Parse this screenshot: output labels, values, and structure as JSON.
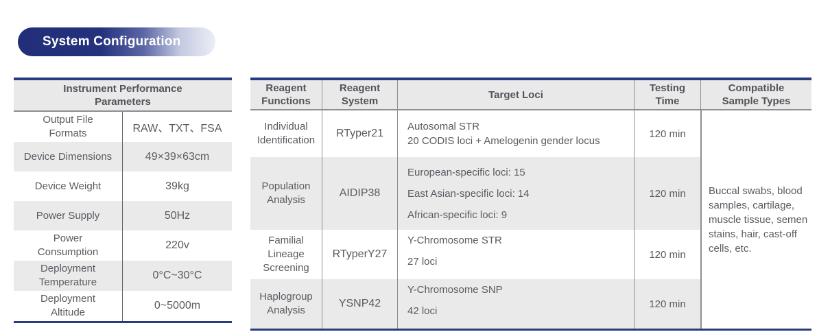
{
  "badge": {
    "label": "System Configuration"
  },
  "left_table": {
    "title_lines": [
      "Instrument Performance",
      "Parameters"
    ],
    "rows": [
      {
        "label_lines": [
          "Output File",
          "Formats"
        ],
        "value": "RAW、TXT、FSA"
      },
      {
        "label_lines": [
          "Device Dimensions",
          ""
        ],
        "value": "49×39×63cm"
      },
      {
        "label_lines": [
          "Device Weight",
          ""
        ],
        "value": "39kg"
      },
      {
        "label_lines": [
          "Power Supply",
          ""
        ],
        "value": "50Hz"
      },
      {
        "label_lines": [
          "Power",
          "Consumption"
        ],
        "value": "220v"
      },
      {
        "label_lines": [
          "Deployment",
          "Temperature"
        ],
        "value": "0°C~30°C"
      },
      {
        "label_lines": [
          "Deployment",
          "Altitude"
        ],
        "value": "0~5000m"
      }
    ]
  },
  "right_table": {
    "headers": {
      "functions_lines": [
        "Reagent",
        "Functions"
      ],
      "system_lines": [
        "Reagent",
        "System"
      ],
      "target_loci": "Target Loci",
      "time_lines": [
        "Testing",
        "Time"
      ],
      "sample_lines": [
        "Compatible",
        "Sample Types"
      ]
    },
    "rows": [
      {
        "function_lines": [
          "Individual",
          "Identification",
          ""
        ],
        "system": "RTyper21",
        "loci_lines": [
          "Autosomal STR",
          "20 CODIS loci + Amelogenin gender locus",
          ""
        ],
        "time": "120 min"
      },
      {
        "function_lines": [
          "Population",
          "Analysis",
          ""
        ],
        "system": "AIDIP38",
        "loci_lines": [
          "European-specific loci: 15",
          "East Asian-specific loci: 14",
          "African-specific loci: 9"
        ],
        "time": "120 min"
      },
      {
        "function_lines": [
          "Familial",
          "Lineage",
          "Screening"
        ],
        "system": "RTyperY27",
        "loci_lines": [
          "Y-Chromosome STR",
          "27 loci",
          ""
        ],
        "time": "120 min"
      },
      {
        "function_lines": [
          "Haplogroup",
          "Analysis",
          ""
        ],
        "system": "YSNP42",
        "loci_lines": [
          "Y-Chromosome SNP",
          "42 loci",
          ""
        ],
        "time": "120 min"
      }
    ],
    "compatible_sample_types": "Buccal swabs, blood samples, cartilage, muscle tissue, semen stains, hair, cast-off cells, etc."
  },
  "colors": {
    "navy": "#283a80",
    "header_gray": "#e9e9e9",
    "stripe_gray": "#eaeaeb",
    "text_gray": "#585b60"
  }
}
